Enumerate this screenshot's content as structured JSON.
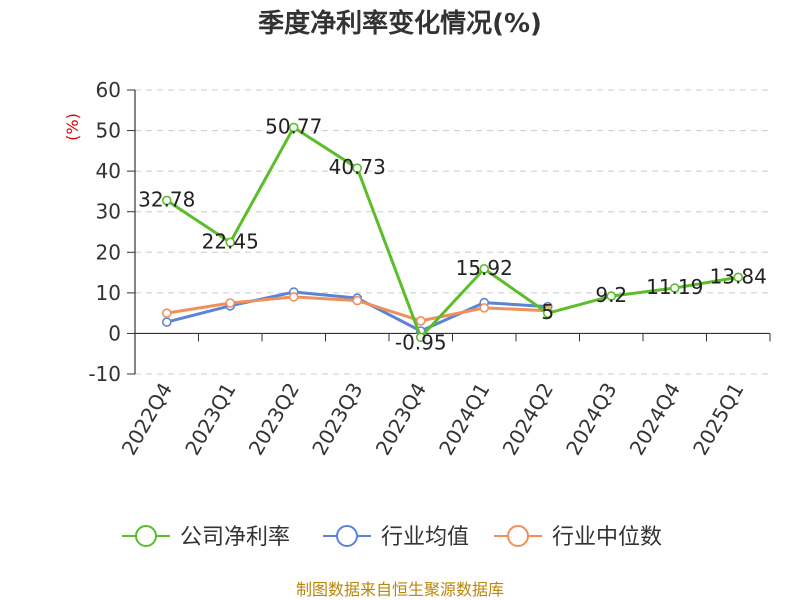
{
  "chart_data": {
    "type": "line",
    "title": "季度净利率变化情况(%)",
    "ylabel": "(%)",
    "categories": [
      "2022Q4",
      "2023Q1",
      "2023Q2",
      "2023Q3",
      "2023Q4",
      "2024Q1",
      "2024Q2",
      "2024Q3",
      "2024Q4",
      "2025Q1"
    ],
    "ylim": [
      -10,
      60
    ],
    "yticks": [
      -10,
      0,
      10,
      20,
      30,
      40,
      50,
      60
    ],
    "grid": true,
    "legend_position": "bottom",
    "series": [
      {
        "name": "公司净利率",
        "color": "#5cbd2b",
        "values": [
          32.78,
          22.45,
          50.77,
          40.73,
          -0.95,
          15.92,
          5,
          9.2,
          11.19,
          13.84
        ],
        "labels": [
          "32.78",
          "22.45",
          "50.77",
          "40.73",
          "-0.95",
          "15.92",
          "5",
          "9.2",
          "11.19",
          "13.84"
        ]
      },
      {
        "name": "行业均值",
        "color": "#5b83d6",
        "values": [
          2.8,
          6.8,
          10.2,
          8.7,
          0.6,
          7.6,
          6.6,
          null,
          null,
          null
        ]
      },
      {
        "name": "行业中位数",
        "color": "#f0905a",
        "values": [
          5.0,
          7.5,
          9.0,
          8.1,
          3.1,
          6.3,
          5.6,
          null,
          null,
          null
        ]
      }
    ],
    "source": "制图数据来自恒生聚源数据库"
  }
}
